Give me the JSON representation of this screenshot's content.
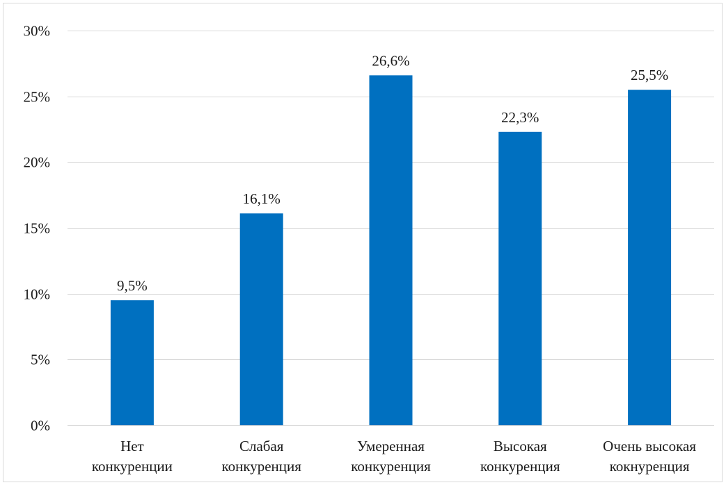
{
  "chart_data": {
    "type": "bar",
    "categories": [
      [
        "Нет",
        "конкуренции"
      ],
      [
        "Слабая",
        "конкуренция"
      ],
      [
        "Умеренная",
        "конкуренция"
      ],
      [
        "Высокая",
        "конкуренция"
      ],
      [
        "Очень высокая",
        "кокнуренция"
      ]
    ],
    "values": [
      9.5,
      16.1,
      26.6,
      22.3,
      25.5
    ],
    "data_labels": [
      "9,5%",
      "16,1%",
      "26,6%",
      "22,3%",
      "25,5%"
    ],
    "ylim": [
      0,
      30
    ],
    "yticks": [
      0,
      5,
      10,
      15,
      20,
      25,
      30
    ],
    "ytick_labels": [
      "0%",
      "5%",
      "10%",
      "15%",
      "20%",
      "25%",
      "30%"
    ],
    "grid": true,
    "legend": "none",
    "colors": {
      "bar": "#0070c0",
      "grid": "#d9d9d9",
      "text": "#1a1a1a"
    }
  }
}
